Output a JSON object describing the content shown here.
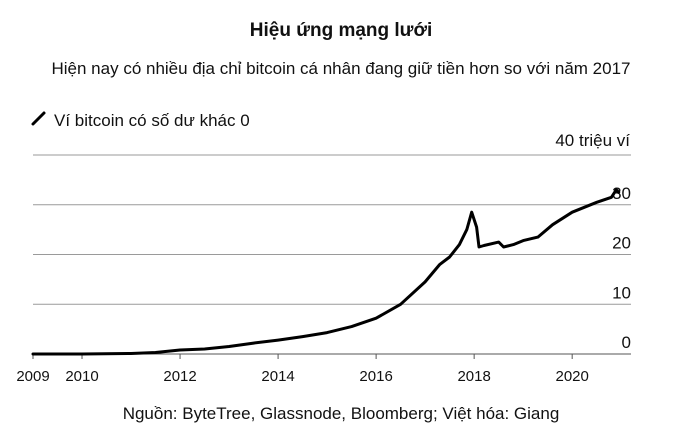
{
  "chart_data": {
    "type": "line",
    "title": "Hiệu ứng mạng lưới",
    "subtitle": "Hiện nay có nhiều địa chỉ bitcoin cá nhân đang giữ tiền hơn so với năm 2017",
    "legend": {
      "label": "Ví bitcoin có số dư khác 0",
      "placement": "top-left"
    },
    "unit_label": "40 triệu ví",
    "source": "Nguồn: ByteTree, Glassnode, Bloomberg; Việt hóa: Giang",
    "ylim": [
      0,
      40
    ],
    "xlim": [
      2009,
      2021.2
    ],
    "grid": true,
    "y_ticks": [
      0,
      10,
      20,
      30,
      40
    ],
    "y_tick_labels": [
      "0",
      "10",
      "20",
      "30",
      ""
    ],
    "x_ticks": [
      2009,
      2010,
      2012,
      2014,
      2016,
      2018,
      2020
    ],
    "x_tick_labels": [
      "2009",
      "2010",
      "2012",
      "2014",
      "2016",
      "2018",
      "2020"
    ],
    "series": [
      {
        "name": "Ví bitcoin có số dư khác 0",
        "color": "#000000",
        "x": [
          2009.0,
          2010.0,
          2011.0,
          2011.5,
          2012.0,
          2012.5,
          2013.0,
          2013.5,
          2014.0,
          2014.5,
          2015.0,
          2015.5,
          2016.0,
          2016.5,
          2017.0,
          2017.3,
          2017.5,
          2017.7,
          2017.85,
          2017.95,
          2018.05,
          2018.1,
          2018.2,
          2018.5,
          2018.6,
          2018.8,
          2019.0,
          2019.3,
          2019.6,
          2020.0,
          2020.5,
          2020.8,
          2020.9,
          2020.95
        ],
        "y": [
          0.0,
          0.0,
          0.1,
          0.3,
          0.8,
          1.0,
          1.5,
          2.2,
          2.8,
          3.5,
          4.3,
          5.5,
          7.2,
          10.0,
          14.5,
          18.0,
          19.5,
          22.0,
          25.0,
          28.5,
          25.5,
          21.5,
          21.8,
          22.5,
          21.5,
          22.0,
          22.8,
          23.5,
          26.0,
          28.5,
          30.5,
          31.5,
          33.0,
          32.5
        ]
      }
    ]
  }
}
